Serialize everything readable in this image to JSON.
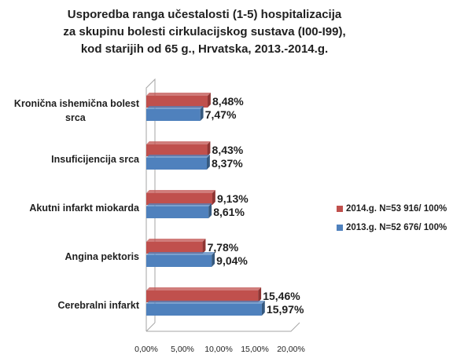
{
  "title": {
    "line1": "Usporedba ranga učestalosti (1-5) hospitalizacija",
    "line2": "za skupinu bolesti cirkulacijskog sustava (I00-I99),",
    "line3": "kod starijih od 65 g., Hrvatska, 2013.-2014.g."
  },
  "colors": {
    "series2014": "#c0504d",
    "series2014_dark": "#8e3533",
    "series2013": "#4f81bd",
    "series2013_dark": "#35597f"
  },
  "chart_data": {
    "type": "bar",
    "orientation": "horizontal",
    "style": "3d",
    "categories": [
      [
        "Kronična ishemična bolest",
        "srca"
      ],
      [
        "Insuficijencija srca"
      ],
      [
        "Akutni infarkt miokarda"
      ],
      [
        "Angina pektoris"
      ],
      [
        "Cerebralni infarkt"
      ]
    ],
    "series": [
      {
        "name": "2014.g. N=53 916/ 100%",
        "values": [
          8.48,
          8.43,
          9.13,
          7.78,
          15.46
        ],
        "labels": [
          "8,48%",
          "8,43%",
          "9,13%",
          "7,78%",
          "15,46%"
        ]
      },
      {
        "name": "2013.g. N=52 676/ 100%",
        "values": [
          7.47,
          8.37,
          8.61,
          9.04,
          15.97
        ],
        "labels": [
          "7,47%",
          "8,37%",
          "8,61%",
          "9,04%",
          "15,97%"
        ]
      }
    ],
    "xlim": [
      0,
      20
    ],
    "xticks": [
      "0,00%",
      "5,00%",
      "10,00%",
      "15,00%",
      "20,00%"
    ],
    "legend": "right",
    "grid": false
  }
}
